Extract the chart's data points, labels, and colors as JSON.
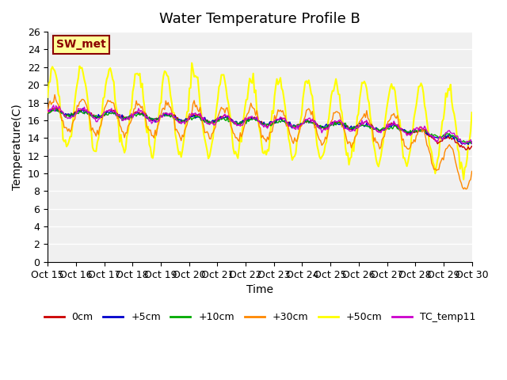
{
  "title": "Water Temperature Profile B",
  "xlabel": "Time",
  "ylabel": "Temperature(C)",
  "ylim": [
    0,
    26
  ],
  "yticks": [
    0,
    2,
    4,
    6,
    8,
    10,
    12,
    14,
    16,
    18,
    20,
    22,
    24,
    26
  ],
  "xtick_labels": [
    "Oct 15",
    "Oct 16",
    "Oct 17",
    "Oct 18",
    "Oct 19",
    "Oct 20",
    "Oct 21",
    "Oct 22",
    "Oct 23",
    "Oct 24",
    "Oct 25",
    "Oct 26",
    "Oct 27",
    "Oct 28",
    "Oct 29",
    "Oct 30"
  ],
  "legend_labels": [
    "0cm",
    "+5cm",
    "+10cm",
    "+30cm",
    "+50cm",
    "TC_temp11"
  ],
  "legend_colors": [
    "#cc0000",
    "#0000cc",
    "#00aa00",
    "#ff8800",
    "#ffff00",
    "#cc00cc"
  ],
  "sw_met_box_color": "#ffff99",
  "sw_met_text_color": "#8b0000",
  "sw_met_border_color": "#8b0000",
  "background_color": "#e8e8e8",
  "plot_bg_color": "#f0f0f0",
  "grid_color": "#ffffff",
  "title_fontsize": 13,
  "axis_label_fontsize": 10,
  "tick_fontsize": 9
}
